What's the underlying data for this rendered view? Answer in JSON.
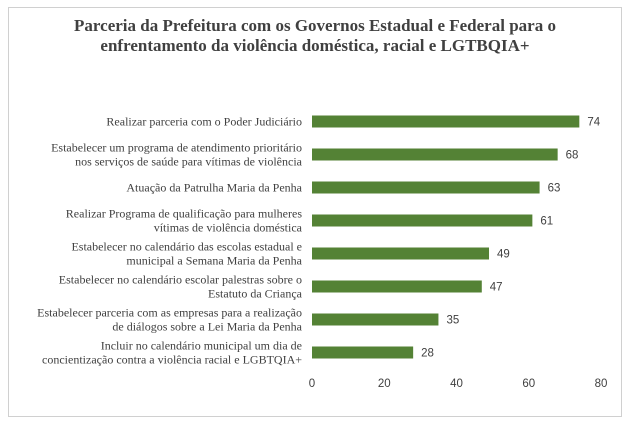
{
  "chart_data": {
    "type": "bar",
    "orientation": "horizontal",
    "title": [
      "Parceria  da Prefeitura  com os Governos Estadual  e Federal para o",
      "enfrentamento  da violência  doméstica, racial e LGTBQIA+"
    ],
    "categories": [
      [
        "Realizar parceria com o Poder Judiciário"
      ],
      [
        "Estabelecer um programa de atendimento prioritário",
        "nos serviços de saúde para vítimas de violência"
      ],
      [
        "Atuação da Patrulha Maria da Penha"
      ],
      [
        "Realizar Programa de qualificação para mulheres",
        "vítimas de violência doméstica"
      ],
      [
        "Estabelecer no calendário das escolas estadual e",
        "municipal a Semana Maria da Penha"
      ],
      [
        "Estabelecer no calendário escolar palestras sobre o",
        "Estatuto da Criança"
      ],
      [
        "Estabelecer parceria com as empresas para a realização",
        "de diálogos sobre a Lei Maria da Penha"
      ],
      [
        "Incluir no calendário municipal um dia de",
        "concientização contra a violência racial e LGBTQIA+"
      ]
    ],
    "values": [
      74,
      68,
      63,
      61,
      49,
      47,
      35,
      28
    ],
    "xlim": [
      0,
      80
    ],
    "xticks": [
      "0",
      "20",
      "40",
      "60",
      "80"
    ],
    "data_labels": true,
    "grid": false,
    "legend": "none",
    "bar_color": "#548235"
  }
}
